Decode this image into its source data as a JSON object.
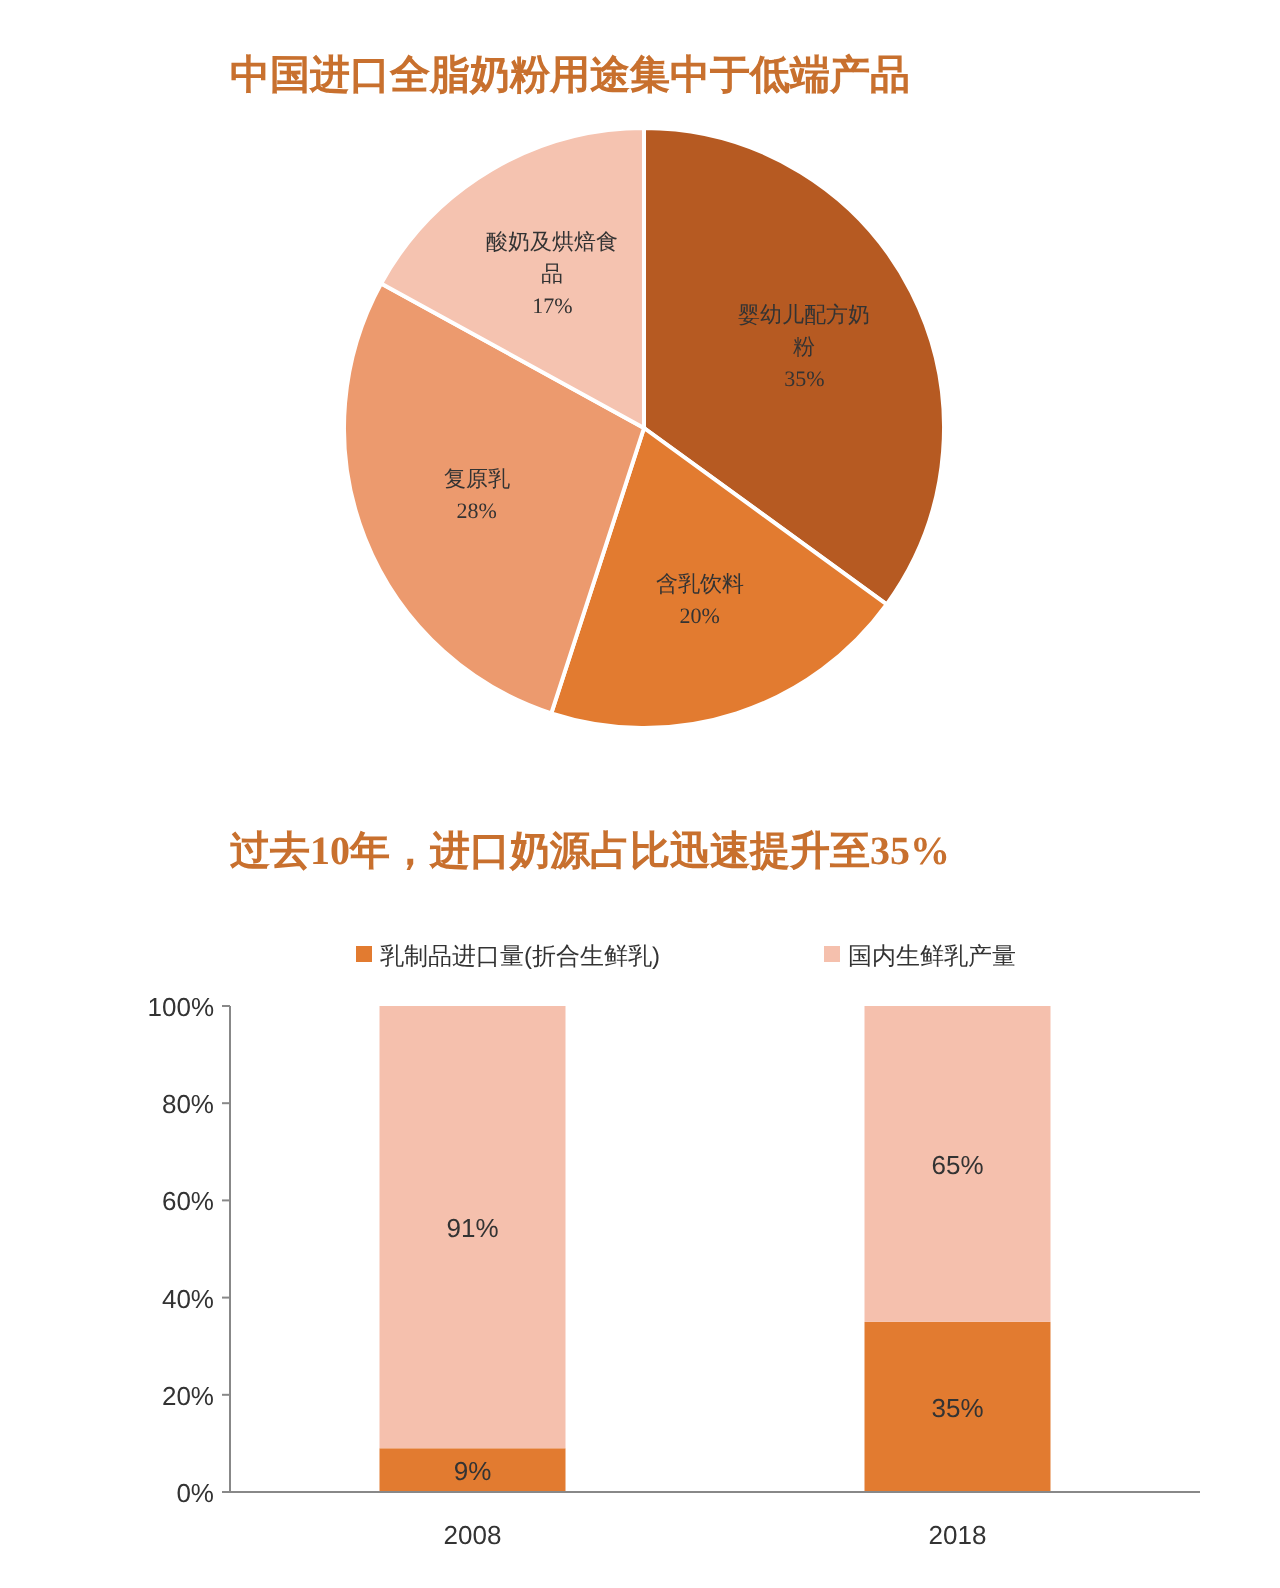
{
  "chart_data": [
    {
      "type": "pie",
      "title": "中国进口全脂奶粉用途集中于低端产品",
      "categories": [
        "婴幼儿配方奶粉",
        "含乳饮料",
        "复原乳",
        "酸奶及烘焙食品"
      ],
      "values": [
        35,
        20,
        28,
        17
      ],
      "colors": [
        "#b65a22",
        "#e27b30",
        "#ec9a6e",
        "#f5c3b0"
      ],
      "value_labels": [
        "35%",
        "20%",
        "28%",
        "17%"
      ],
      "legend": false
    },
    {
      "type": "bar",
      "title": "过去10年，进口奶源占比迅速提升至35%",
      "categories": [
        "2008",
        "2018"
      ],
      "stacked": true,
      "ylim": [
        0,
        100
      ],
      "yticks": [
        {
          "value": 0,
          "label": "0%"
        },
        {
          "value": 20,
          "label": "20%"
        },
        {
          "value": 40,
          "label": "40%"
        },
        {
          "value": 60,
          "label": "60%"
        },
        {
          "value": 80,
          "label": "80%"
        },
        {
          "value": 100,
          "label": "100%"
        }
      ],
      "grid": false,
      "legend": "top",
      "series": [
        {
          "name": "乳制品进口量(折合生鲜乳)",
          "color": "#e27b30",
          "values": [
            9,
            35
          ],
          "value_labels": [
            "9%",
            "35%"
          ]
        },
        {
          "name": "国内生鲜乳产量",
          "color": "#f5c0ad",
          "values": [
            91,
            65
          ],
          "value_labels": [
            "91%",
            "65%"
          ]
        }
      ]
    }
  ]
}
